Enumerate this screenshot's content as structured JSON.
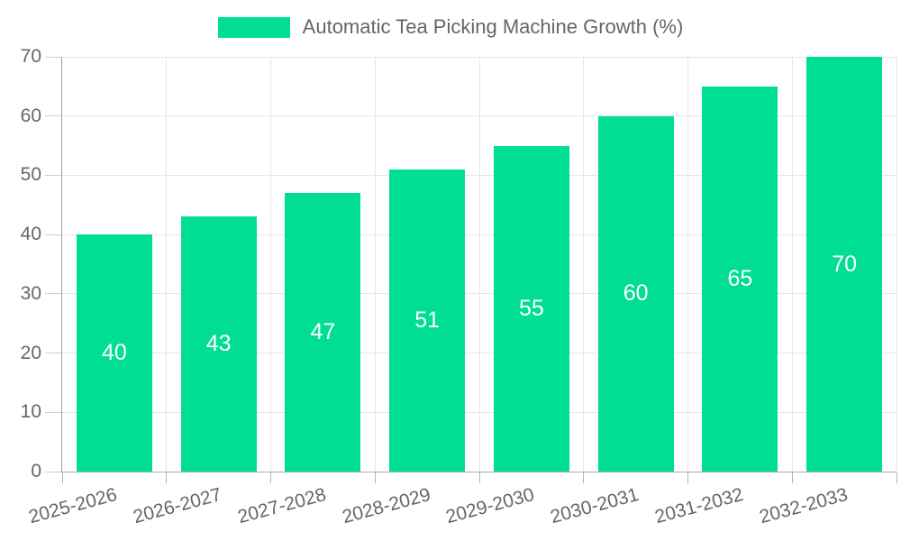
{
  "legend": {
    "label": "Automatic Tea Picking Machine Growth (%)"
  },
  "chart_data": {
    "type": "bar",
    "title": "",
    "series_name": "Automatic Tea Picking Machine Growth (%)",
    "categories": [
      "2025-2026",
      "2026-2027",
      "2027-2028",
      "2028-2029",
      "2029-2030",
      "2030-2031",
      "2031-2032",
      "2032-2033"
    ],
    "values": [
      40,
      43,
      47,
      51,
      55,
      60,
      65,
      70
    ],
    "bar_value_labels": [
      "40",
      "43",
      "47",
      "51",
      "55",
      "60",
      "65",
      "70"
    ],
    "ylim": [
      0,
      70
    ],
    "yticks": [
      0,
      10,
      20,
      30,
      40,
      50,
      60,
      70
    ],
    "grid": true,
    "legend_position": "top-center",
    "bar_color": "#00DE94",
    "bar_label_color": "#ffffff",
    "axis_label_color": "#666666",
    "gridline_color": "#e6e6e6",
    "axis_line_color": "#9e9e9e",
    "background_color": "#ffffff"
  }
}
